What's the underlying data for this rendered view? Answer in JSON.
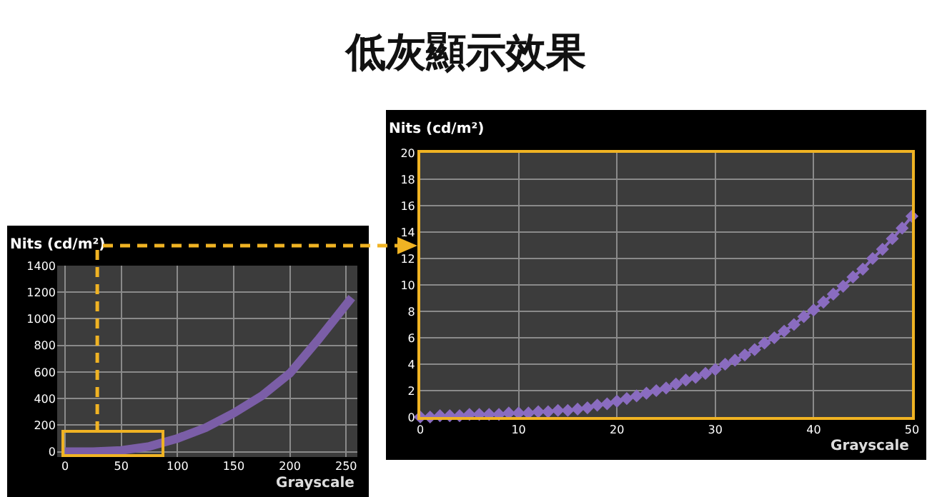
{
  "chart_data": [
    {
      "type": "line",
      "xlabel": "Grayscale",
      "ylabel": "Nits (cd/m²)",
      "x": [
        0,
        25,
        50,
        75,
        100,
        125,
        150,
        175,
        200,
        225,
        255
      ],
      "series": [
        {
          "color": "#7b5ea7",
          "values": [
            0,
            0,
            10,
            40,
            100,
            180,
            290,
            420,
            590,
            840,
            1160
          ]
        }
      ],
      "xlim": [
        -7,
        260
      ],
      "xticks": [
        0,
        50,
        100,
        150,
        200,
        250
      ],
      "ylim": [
        -40,
        1400
      ],
      "yticks": [
        0,
        200,
        400,
        600,
        800,
        1000,
        1200,
        1400
      ],
      "grid": true,
      "marker": "none",
      "line_style": "solid"
    },
    {
      "type": "line",
      "title": "低灰顯示效果",
      "xlabel": "Grayscale",
      "ylabel": "Nits (cd/m²)",
      "x": [
        0,
        1,
        2,
        3,
        4,
        5,
        6,
        7,
        8,
        9,
        10,
        11,
        12,
        13,
        14,
        15,
        16,
        17,
        18,
        19,
        20,
        21,
        22,
        23,
        24,
        25,
        26,
        27,
        28,
        29,
        30,
        31,
        32,
        33,
        34,
        35,
        36,
        37,
        38,
        39,
        40,
        41,
        42,
        43,
        44,
        45,
        46,
        47,
        48,
        49,
        50
      ],
      "series": [
        {
          "color": "#8a6cc0",
          "values": [
            0,
            0,
            0.1,
            0.1,
            0.1,
            0.2,
            0.2,
            0.2,
            0.2,
            0.3,
            0.3,
            0.3,
            0.4,
            0.4,
            0.5,
            0.5,
            0.6,
            0.7,
            0.9,
            1.0,
            1.2,
            1.4,
            1.6,
            1.8,
            2.0,
            2.2,
            2.5,
            2.8,
            3.0,
            3.3,
            3.6,
            4.0,
            4.3,
            4.7,
            5.1,
            5.6,
            6.0,
            6.5,
            7.0,
            7.6,
            8.1,
            8.7,
            9.3,
            9.9,
            10.6,
            11.2,
            12.0,
            12.7,
            13.5,
            14.3,
            15.2
          ]
        }
      ],
      "xlim": [
        0,
        50
      ],
      "xticks": [
        0,
        10,
        20,
        30,
        40,
        50
      ],
      "ylim": [
        0,
        20
      ],
      "yticks": [
        0,
        2,
        4,
        6,
        8,
        10,
        12,
        14,
        16,
        18,
        20
      ],
      "grid": true,
      "marker": "diamond",
      "line_style": "solid"
    }
  ]
}
